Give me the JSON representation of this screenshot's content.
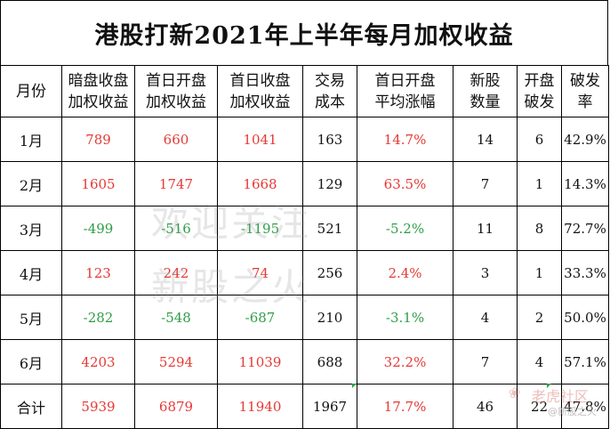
{
  "title": "港股打新2021年上半年每月加权收益",
  "columns": [
    {
      "line1": "月份",
      "line2": ""
    },
    {
      "line1": "暗盘收盘",
      "line2": "加权收益"
    },
    {
      "line1": "首日开盘",
      "line2": "加权收益"
    },
    {
      "line1": "首日收盘",
      "line2": "加权收益"
    },
    {
      "line1": "交易",
      "line2": "成本"
    },
    {
      "line1": "首日开盘",
      "line2": "平均涨幅"
    },
    {
      "line1": "新股",
      "line2": "数量"
    },
    {
      "line1": "开盘",
      "line2": "破发"
    },
    {
      "line1": "破发",
      "line2": "率"
    }
  ],
  "rows": [
    {
      "month": "1月",
      "dark": "789",
      "open": "660",
      "close": "1041",
      "cost": "163",
      "avg_gain": "14.7%",
      "count": "14",
      "broken": "6",
      "broken_rate": "42.9%"
    },
    {
      "month": "2月",
      "dark": "1605",
      "open": "1747",
      "close": "1668",
      "cost": "129",
      "avg_gain": "63.5%",
      "count": "7",
      "broken": "1",
      "broken_rate": "14.3%"
    },
    {
      "month": "3月",
      "dark": "-499",
      "open": "-516",
      "close": "-1195",
      "cost": "521",
      "avg_gain": "-5.2%",
      "count": "11",
      "broken": "8",
      "broken_rate": "72.7%"
    },
    {
      "month": "4月",
      "dark": "123",
      "open": "242",
      "close": "74",
      "cost": "256",
      "avg_gain": "2.4%",
      "count": "3",
      "broken": "1",
      "broken_rate": "33.3%"
    },
    {
      "month": "5月",
      "dark": "-282",
      "open": "-548",
      "close": "-687",
      "cost": "210",
      "avg_gain": "-3.1%",
      "count": "4",
      "broken": "2",
      "broken_rate": "50.0%"
    },
    {
      "month": "6月",
      "dark": "4203",
      "open": "5294",
      "close": "11039",
      "cost": "688",
      "avg_gain": "32.2%",
      "count": "7",
      "broken": "4",
      "broken_rate": "57.1%"
    },
    {
      "month": "合计",
      "dark": "5939",
      "open": "6879",
      "close": "11940",
      "cost": "1967",
      "avg_gain": "17.7%",
      "count": "46",
      "broken": "22",
      "broken_rate": "47.8%"
    }
  ],
  "watermark": {
    "line1": "欢迎关注",
    "line2": "新股之火"
  },
  "brand": {
    "name": "老虎社区",
    "handle": "@新股之火"
  },
  "colors": {
    "positive": "#e53935",
    "negative": "#2e9e46",
    "neutral": "#111111"
  },
  "column_widths": [
    69,
    82,
    93,
    96,
    61,
    108,
    72,
    50,
    53
  ]
}
